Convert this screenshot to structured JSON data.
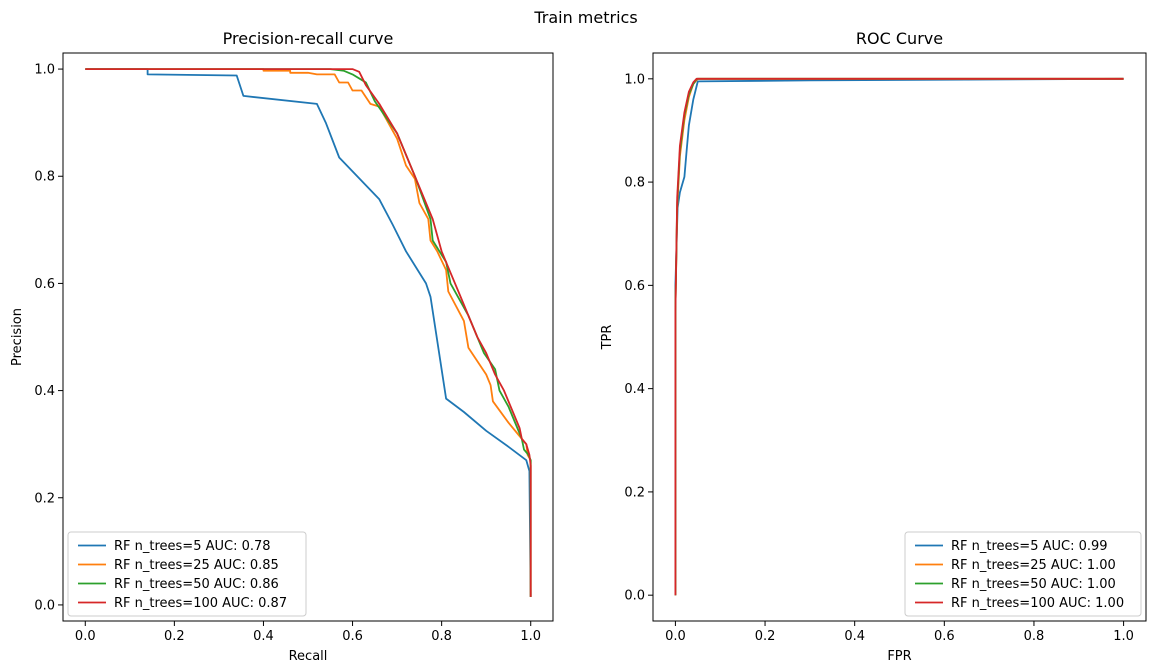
{
  "figure": {
    "suptitle": "Train metrics"
  },
  "colors": [
    "#1f77b4",
    "#ff7f0e",
    "#2ca02c",
    "#d62728"
  ],
  "chart_data": [
    {
      "type": "line",
      "title": "Precision-recall curve",
      "xlabel": "Recall",
      "ylabel": "Precision",
      "xlim": [
        -0.05,
        1.05
      ],
      "ylim": [
        -0.03,
        1.03
      ],
      "xticks": [
        "0.0",
        "0.2",
        "0.4",
        "0.6",
        "0.8",
        "1.0"
      ],
      "yticks": [
        "0.0",
        "0.2",
        "0.4",
        "0.6",
        "0.8",
        "1.0"
      ],
      "grid": false,
      "legend_position": "lower-left",
      "series": [
        {
          "name": "RF n_trees=5 AUC: 0.78",
          "points": [
            [
              0.0,
              1.0
            ],
            [
              0.14,
              1.0
            ],
            [
              0.14,
              0.99
            ],
            [
              0.34,
              0.988
            ],
            [
              0.355,
              0.95
            ],
            [
              0.52,
              0.935
            ],
            [
              0.54,
              0.9
            ],
            [
              0.57,
              0.835
            ],
            [
              0.66,
              0.757
            ],
            [
              0.69,
              0.71
            ],
            [
              0.72,
              0.66
            ],
            [
              0.765,
              0.6
            ],
            [
              0.775,
              0.575
            ],
            [
              0.81,
              0.385
            ],
            [
              0.85,
              0.36
            ],
            [
              0.9,
              0.325
            ],
            [
              0.95,
              0.295
            ],
            [
              0.99,
              0.27
            ],
            [
              0.997,
              0.25
            ],
            [
              1.0,
              0.015
            ]
          ]
        },
        {
          "name": "RF n_trees=25 AUC: 0.85",
          "points": [
            [
              0.0,
              1.0
            ],
            [
              0.4,
              1.0
            ],
            [
              0.4,
              0.997
            ],
            [
              0.46,
              0.997
            ],
            [
              0.46,
              0.993
            ],
            [
              0.5,
              0.993
            ],
            [
              0.52,
              0.99
            ],
            [
              0.56,
              0.99
            ],
            [
              0.57,
              0.975
            ],
            [
              0.59,
              0.975
            ],
            [
              0.6,
              0.96
            ],
            [
              0.62,
              0.96
            ],
            [
              0.64,
              0.935
            ],
            [
              0.66,
              0.93
            ],
            [
              0.7,
              0.87
            ],
            [
              0.72,
              0.82
            ],
            [
              0.74,
              0.795
            ],
            [
              0.75,
              0.75
            ],
            [
              0.77,
              0.72
            ],
            [
              0.775,
              0.68
            ],
            [
              0.79,
              0.66
            ],
            [
              0.81,
              0.625
            ],
            [
              0.815,
              0.585
            ],
            [
              0.85,
              0.53
            ],
            [
              0.86,
              0.48
            ],
            [
              0.9,
              0.43
            ],
            [
              0.91,
              0.41
            ],
            [
              0.915,
              0.38
            ],
            [
              0.95,
              0.34
            ],
            [
              0.97,
              0.32
            ],
            [
              0.99,
              0.3
            ],
            [
              0.993,
              0.28
            ],
            [
              1.0,
              0.27
            ],
            [
              1.0,
              0.015
            ]
          ]
        },
        {
          "name": "RF n_trees=50 AUC: 0.86",
          "points": [
            [
              0.0,
              1.0
            ],
            [
              0.55,
              1.0
            ],
            [
              0.58,
              0.997
            ],
            [
              0.6,
              0.99
            ],
            [
              0.62,
              0.98
            ],
            [
              0.63,
              0.975
            ],
            [
              0.65,
              0.94
            ],
            [
              0.7,
              0.88
            ],
            [
              0.74,
              0.8
            ],
            [
              0.775,
              0.72
            ],
            [
              0.78,
              0.68
            ],
            [
              0.81,
              0.64
            ],
            [
              0.82,
              0.6
            ],
            [
              0.86,
              0.54
            ],
            [
              0.88,
              0.5
            ],
            [
              0.895,
              0.47
            ],
            [
              0.92,
              0.44
            ],
            [
              0.93,
              0.4
            ],
            [
              0.95,
              0.37
            ],
            [
              0.97,
              0.33
            ],
            [
              0.98,
              0.31
            ],
            [
              0.985,
              0.29
            ],
            [
              0.995,
              0.28
            ],
            [
              1.0,
              0.27
            ],
            [
              1.0,
              0.015
            ]
          ]
        },
        {
          "name": "RF n_trees=100 AUC: 0.87",
          "points": [
            [
              0.0,
              1.0
            ],
            [
              0.6,
              1.0
            ],
            [
              0.615,
              0.995
            ],
            [
              0.63,
              0.97
            ],
            [
              0.66,
              0.935
            ],
            [
              0.7,
              0.88
            ],
            [
              0.74,
              0.8
            ],
            [
              0.78,
              0.72
            ],
            [
              0.8,
              0.66
            ],
            [
              0.82,
              0.62
            ],
            [
              0.84,
              0.58
            ],
            [
              0.86,
              0.54
            ],
            [
              0.88,
              0.5
            ],
            [
              0.9,
              0.47
            ],
            [
              0.92,
              0.43
            ],
            [
              0.94,
              0.4
            ],
            [
              0.96,
              0.36
            ],
            [
              0.975,
              0.33
            ],
            [
              0.98,
              0.31
            ],
            [
              0.99,
              0.3
            ],
            [
              0.997,
              0.28
            ],
            [
              1.0,
              0.26
            ],
            [
              1.0,
              0.015
            ]
          ]
        }
      ]
    },
    {
      "type": "line",
      "title": "ROC Curve",
      "xlabel": "FPR",
      "ylabel": "TPR",
      "xlim": [
        -0.05,
        1.05
      ],
      "ylim": [
        -0.05,
        1.05
      ],
      "xticks": [
        "0.0",
        "0.2",
        "0.4",
        "0.6",
        "0.8",
        "1.0"
      ],
      "yticks": [
        "0.0",
        "0.2",
        "0.4",
        "0.6",
        "0.8",
        "1.0"
      ],
      "grid": false,
      "legend_position": "lower-right",
      "series": [
        {
          "name": "RF n_trees=5 AUC: 0.99",
          "points": [
            [
              0.0,
              0.0
            ],
            [
              0.0,
              0.6
            ],
            [
              0.005,
              0.75
            ],
            [
              0.01,
              0.78
            ],
            [
              0.02,
              0.81
            ],
            [
              0.025,
              0.86
            ],
            [
              0.03,
              0.91
            ],
            [
              0.04,
              0.96
            ],
            [
              0.05,
              0.995
            ],
            [
              0.3,
              0.997
            ],
            [
              1.0,
              1.0
            ]
          ]
        },
        {
          "name": "RF n_trees=25 AUC: 1.00",
          "points": [
            [
              0.0,
              0.0
            ],
            [
              0.0,
              0.55
            ],
            [
              0.004,
              0.75
            ],
            [
              0.01,
              0.85
            ],
            [
              0.02,
              0.92
            ],
            [
              0.03,
              0.965
            ],
            [
              0.04,
              0.99
            ],
            [
              0.05,
              1.0
            ],
            [
              1.0,
              1.0
            ]
          ]
        },
        {
          "name": "RF n_trees=50 AUC: 1.00",
          "points": [
            [
              0.0,
              0.0
            ],
            [
              0.0,
              0.55
            ],
            [
              0.004,
              0.76
            ],
            [
              0.01,
              0.86
            ],
            [
              0.02,
              0.93
            ],
            [
              0.03,
              0.97
            ],
            [
              0.04,
              0.99
            ],
            [
              0.048,
              1.0
            ],
            [
              1.0,
              1.0
            ]
          ]
        },
        {
          "name": "RF n_trees=100 AUC: 1.00",
          "points": [
            [
              0.0,
              0.0
            ],
            [
              0.0,
              0.55
            ],
            [
              0.004,
              0.77
            ],
            [
              0.01,
              0.87
            ],
            [
              0.02,
              0.935
            ],
            [
              0.03,
              0.975
            ],
            [
              0.04,
              0.993
            ],
            [
              0.047,
              1.0
            ],
            [
              1.0,
              1.0
            ]
          ]
        }
      ]
    }
  ]
}
